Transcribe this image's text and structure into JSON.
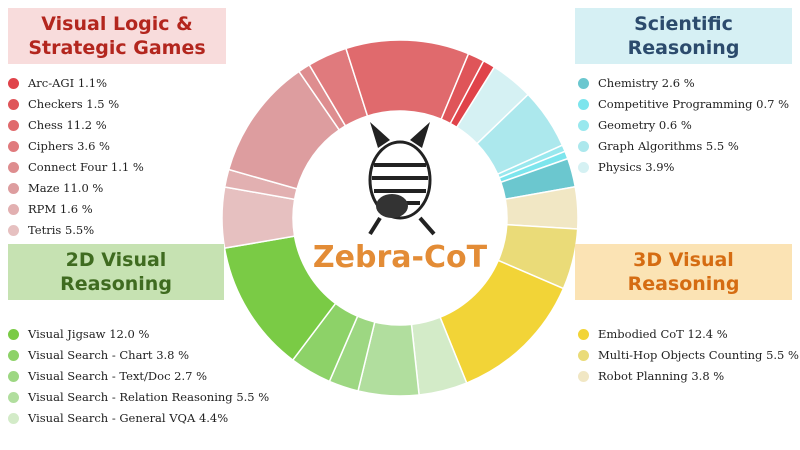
{
  "chart_data": {
    "type": "donut",
    "center_label": "Zebra-CoT",
    "groups": [
      {
        "name": "Visual Logic & Strategic Games",
        "header_color": "#f8dcdc",
        "text_color": "#b3261e",
        "categories": [
          "Arc-AGI",
          "Checkers",
          "Chess",
          "Ciphers",
          "Connect Four",
          "Maze",
          "RPM",
          "Tetris"
        ],
        "values": [
          1.1,
          1.5,
          11.2,
          3.6,
          1.1,
          11.0,
          1.6,
          5.5
        ],
        "value_labels": [
          "1.1%",
          "1.5 %",
          "11.2 %",
          "3.6 %",
          "1.1 %",
          "11.0 %",
          "1.6 %",
          "5.5%"
        ],
        "colors": [
          "#e0434a",
          "#df5559",
          "#e06a6d",
          "#e07a7d",
          "#de8d8f",
          "#dd9d9f",
          "#e2b0b1",
          "#e6c0c0"
        ]
      },
      {
        "name": "2D Visual Reasoning",
        "header_color": "#c6e2b2",
        "text_color": "#3f6b20",
        "categories": [
          "Visual Jigsaw",
          "Visual Search - Chart",
          "Visual Search - Text/Doc",
          "Visual Search - Relation Reasoning",
          "Visual Search - General VQA"
        ],
        "values": [
          12.0,
          3.8,
          2.7,
          5.5,
          4.4
        ],
        "value_labels": [
          "12.0 %",
          "3.8 %",
          "2.7 %",
          "5.5 %",
          "4.4%"
        ],
        "colors": [
          "#7acb45",
          "#8dd268",
          "#9dd782",
          "#b1de9e",
          "#d3ebc8"
        ]
      },
      {
        "name": "3D Visual Reasoning",
        "header_color": "#fbe3b4",
        "text_color": "#d56c12",
        "categories": [
          "Embodied CoT",
          "Multi-Hop Objects Counting",
          "Robot Planning"
        ],
        "values": [
          12.4,
          5.5,
          3.8
        ],
        "value_labels": [
          "12.4 %",
          "5.5 %",
          "3.8 %"
        ],
        "colors": [
          "#f2d437",
          "#eadb78",
          "#f1e7c4"
        ]
      },
      {
        "name": "Scientific Reasoning",
        "header_color": "#d6f0f4",
        "text_color": "#2c4b6d",
        "categories": [
          "Chemistry",
          "Competitive Programming",
          "Geometry",
          "Graph Algorithms",
          "Physics"
        ],
        "values": [
          2.6,
          0.7,
          0.6,
          5.5,
          3.9
        ],
        "value_labels": [
          "2.6 %",
          "0.7 %",
          "0.6 %",
          "5.5 %",
          "3.9%"
        ],
        "colors": [
          "#6bc7cf",
          "#7de5ed",
          "#99e8ee",
          "#acE8ed",
          "#d5f1f3"
        ]
      }
    ]
  }
}
